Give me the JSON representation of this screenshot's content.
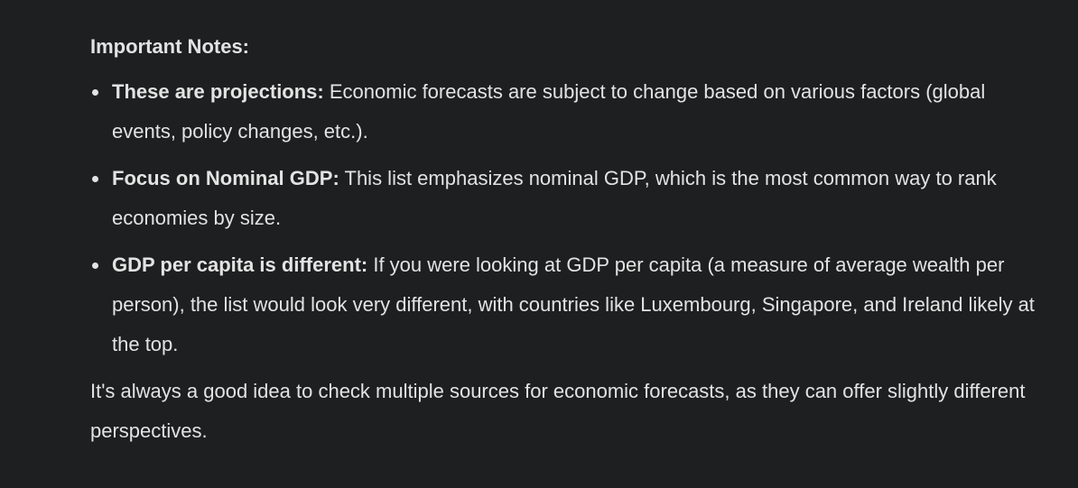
{
  "partial_top_line": "                                                                                       ",
  "notes": {
    "heading": "Important Notes:",
    "items": [
      {
        "lead": "These are projections:",
        "text": " Economic forecasts are subject to change based on various factors (global events, policy changes, etc.)."
      },
      {
        "lead": "Focus on Nominal GDP:",
        "text": " This list emphasizes nominal GDP, which is the most common way to rank economies by size."
      },
      {
        "lead": "GDP per capita is different:",
        "text": " If you were looking at GDP per capita (a measure of average wealth per person), the list would look very different, with countries like Luxembourg, Singapore, and Ireland likely at the top."
      }
    ]
  },
  "closing": "It's always a good idea to check multiple sources for economic forecasts, as they can offer slightly different perspectives."
}
